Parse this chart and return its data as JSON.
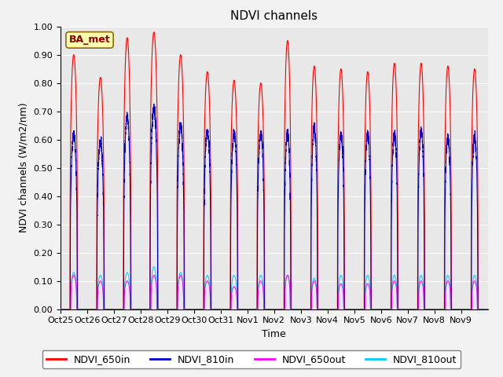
{
  "title": "NDVI channels",
  "xlabel": "Time",
  "ylabel": "NDVI channels (W/m2/nm)",
  "ylim": [
    0.0,
    1.0
  ],
  "annotation": "BA_met",
  "legend_labels": [
    "NDVI_650in",
    "NDVI_810in",
    "NDVI_650out",
    "NDVI_810out"
  ],
  "colors": {
    "NDVI_650in": "#ff0000",
    "NDVI_810in": "#0000cc",
    "NDVI_650out": "#ff00ff",
    "NDVI_810out": "#00ccff"
  },
  "xtick_labels": [
    "Oct 25",
    "Oct 26",
    "Oct 27",
    "Oct 28",
    "Oct 29",
    "Oct 30",
    "Oct 31",
    "Nov 1",
    "Nov 2",
    "Nov 3",
    "Nov 4",
    "Nov 5",
    "Nov 6",
    "Nov 7",
    "Nov 8",
    "Nov 9"
  ],
  "background_color": "#e8e8e8",
  "fig_background": "#f2f2f2",
  "title_fontsize": 11,
  "label_fontsize": 9,
  "tick_fontsize": 8,
  "legend_fontsize": 9,
  "peak_heights_650in": [
    0.9,
    0.82,
    0.96,
    0.98,
    0.9,
    0.84,
    0.81,
    0.8,
    0.95,
    0.86,
    0.85,
    0.84,
    0.87,
    0.87,
    0.86,
    0.85
  ],
  "peak_heights_810in": [
    0.62,
    0.59,
    0.68,
    0.71,
    0.65,
    0.63,
    0.62,
    0.62,
    0.62,
    0.64,
    0.62,
    0.62,
    0.62,
    0.63,
    0.61,
    0.61
  ],
  "peak_heights_650out": [
    0.12,
    0.1,
    0.1,
    0.12,
    0.12,
    0.1,
    0.08,
    0.1,
    0.12,
    0.1,
    0.09,
    0.09,
    0.1,
    0.1,
    0.1,
    0.1
  ],
  "peak_heights_810out": [
    0.13,
    0.12,
    0.13,
    0.15,
    0.13,
    0.12,
    0.12,
    0.12,
    0.12,
    0.11,
    0.12,
    0.12,
    0.12,
    0.12,
    0.12,
    0.12
  ],
  "peak_widths_650in": [
    0.28,
    0.28,
    0.28,
    0.3,
    0.28,
    0.28,
    0.28,
    0.28,
    0.26,
    0.26,
    0.26,
    0.26,
    0.26,
    0.26,
    0.26,
    0.26
  ],
  "peak_widths_810in": [
    0.26,
    0.26,
    0.26,
    0.28,
    0.26,
    0.26,
    0.26,
    0.26,
    0.24,
    0.24,
    0.24,
    0.24,
    0.24,
    0.24,
    0.24,
    0.24
  ],
  "peak_widths_out": [
    0.22,
    0.22,
    0.22,
    0.22,
    0.22,
    0.22,
    0.22,
    0.22,
    0.2,
    0.2,
    0.2,
    0.2,
    0.2,
    0.2,
    0.2,
    0.2
  ]
}
